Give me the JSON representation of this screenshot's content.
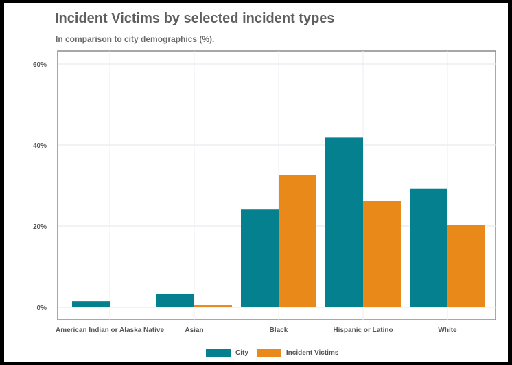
{
  "chart_data": {
    "type": "bar",
    "title": "Incident Victims by selected incident types",
    "subtitle": "In comparison to city demographics (%).",
    "xlabel": "",
    "ylabel": "",
    "categories": [
      "American Indian or Alaska Native",
      "Asian",
      "Black",
      "Hispanic or Latino",
      "White"
    ],
    "series": [
      {
        "name": "City",
        "color": "#05808f",
        "values": [
          1.5,
          3.3,
          24.2,
          41.8,
          29.2
        ]
      },
      {
        "name": "Incident Victims",
        "color": "#e8891a",
        "values": [
          0,
          0.5,
          32.6,
          26.2,
          20.3
        ]
      }
    ],
    "ylim": [
      0,
      60
    ],
    "yticks": [
      0,
      20,
      40,
      60
    ],
    "ytick_labels": [
      "0%",
      "20%",
      "40%",
      "60%"
    ],
    "grid": true,
    "legend_position": "bottom"
  }
}
